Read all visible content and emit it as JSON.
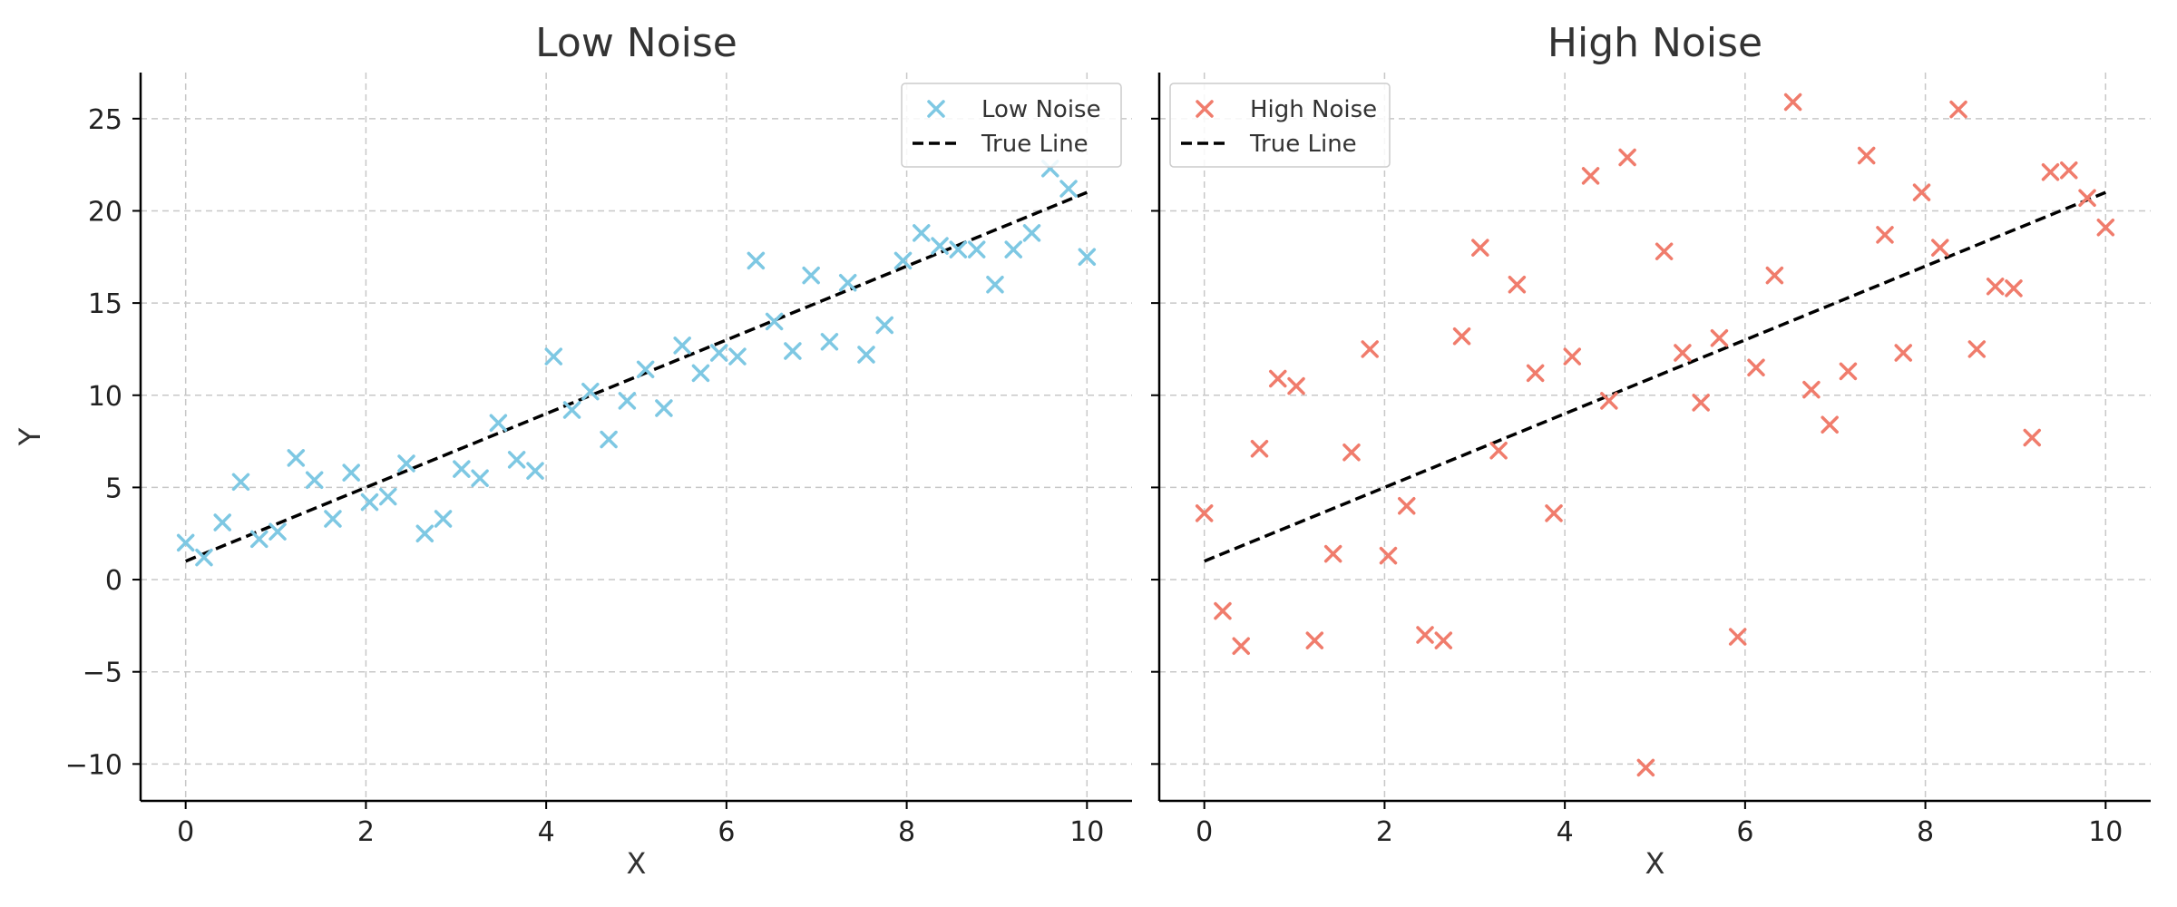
{
  "chart_data": [
    {
      "type": "scatter",
      "title": "Low Noise",
      "xlabel": "X",
      "ylabel": "Y",
      "xlim": [
        -0.5,
        10.5
      ],
      "ylim": [
        -12,
        27.5
      ],
      "xticks": [
        0,
        2,
        4,
        6,
        8,
        10
      ],
      "yticks": [
        -10,
        -5,
        0,
        5,
        10,
        15,
        20,
        25
      ],
      "ytick_labels": [
        "−10",
        "−5",
        "0",
        "5",
        "10",
        "15",
        "20",
        "25"
      ],
      "grid": true,
      "legend_position": "upper right",
      "series": [
        {
          "name": "Low Noise",
          "kind": "scatter",
          "marker": "x",
          "color": "#7ec8e3",
          "x": [
            0.0,
            0.204,
            0.408,
            0.612,
            0.816,
            1.02,
            1.224,
            1.429,
            1.633,
            1.837,
            2.041,
            2.245,
            2.449,
            2.653,
            2.857,
            3.061,
            3.265,
            3.469,
            3.673,
            3.878,
            4.082,
            4.286,
            4.49,
            4.694,
            4.898,
            5.102,
            5.306,
            5.51,
            5.714,
            5.918,
            6.122,
            6.327,
            6.531,
            6.735,
            6.939,
            7.143,
            7.347,
            7.551,
            7.755,
            7.959,
            8.163,
            8.367,
            8.571,
            8.776,
            8.98,
            9.184,
            9.388,
            9.592,
            9.796,
            10.0
          ],
          "y": [
            2.0,
            1.2,
            3.1,
            5.3,
            2.2,
            2.6,
            6.6,
            5.4,
            3.3,
            5.8,
            4.2,
            4.5,
            6.3,
            2.5,
            3.3,
            6.0,
            5.5,
            8.5,
            6.5,
            5.9,
            12.1,
            9.2,
            10.2,
            7.6,
            9.7,
            11.4,
            9.3,
            12.7,
            11.2,
            12.3,
            12.1,
            17.3,
            14.0,
            12.4,
            16.5,
            12.9,
            16.1,
            12.2,
            13.8,
            17.3,
            18.8,
            18.1,
            17.9,
            17.9,
            16.0,
            17.9,
            18.8,
            22.3,
            21.2,
            17.5
          ]
        },
        {
          "name": "True Line",
          "kind": "line",
          "style": "dashed",
          "color": "#000000",
          "x": [
            0,
            10
          ],
          "y": [
            1,
            21
          ]
        }
      ]
    },
    {
      "type": "scatter",
      "title": "High Noise",
      "xlabel": "X",
      "ylabel": "",
      "xlim": [
        -0.5,
        10.5
      ],
      "ylim": [
        -12,
        27.5
      ],
      "xticks": [
        0,
        2,
        4,
        6,
        8,
        10
      ],
      "yticks": [
        -10,
        -5,
        0,
        5,
        10,
        15,
        20,
        25
      ],
      "ytick_labels": [],
      "grid": true,
      "legend_position": "upper left",
      "series": [
        {
          "name": "High Noise",
          "kind": "scatter",
          "marker": "x",
          "color": "#f07c6c",
          "x": [
            0.0,
            0.204,
            0.408,
            0.612,
            0.816,
            1.02,
            1.224,
            1.429,
            1.633,
            1.837,
            2.041,
            2.245,
            2.449,
            2.653,
            2.857,
            3.061,
            3.265,
            3.469,
            3.673,
            3.878,
            4.082,
            4.286,
            4.49,
            4.694,
            4.898,
            5.102,
            5.306,
            5.51,
            5.714,
            5.918,
            6.122,
            6.327,
            6.531,
            6.735,
            6.939,
            7.143,
            7.347,
            7.551,
            7.755,
            7.959,
            8.163,
            8.367,
            8.571,
            8.776,
            8.98,
            9.184,
            9.388,
            9.592,
            9.796,
            10.0
          ],
          "y": [
            3.6,
            -1.7,
            -3.6,
            7.1,
            10.9,
            10.5,
            -3.3,
            1.4,
            6.9,
            12.5,
            1.3,
            4.0,
            -3.0,
            -3.3,
            13.2,
            18.0,
            7.0,
            16.0,
            11.2,
            3.6,
            12.1,
            21.9,
            9.7,
            22.9,
            -10.2,
            17.8,
            12.3,
            9.6,
            13.1,
            -3.1,
            11.5,
            16.5,
            25.9,
            10.3,
            8.4,
            11.3,
            23.0,
            18.7,
            12.3,
            21.0,
            18.0,
            25.5,
            12.5,
            15.9,
            15.8,
            7.7,
            22.1,
            22.2,
            20.7,
            19.1
          ]
        },
        {
          "name": "True Line",
          "kind": "line",
          "style": "dashed",
          "color": "#000000",
          "x": [
            0,
            10
          ],
          "y": [
            1,
            21
          ]
        }
      ]
    }
  ]
}
